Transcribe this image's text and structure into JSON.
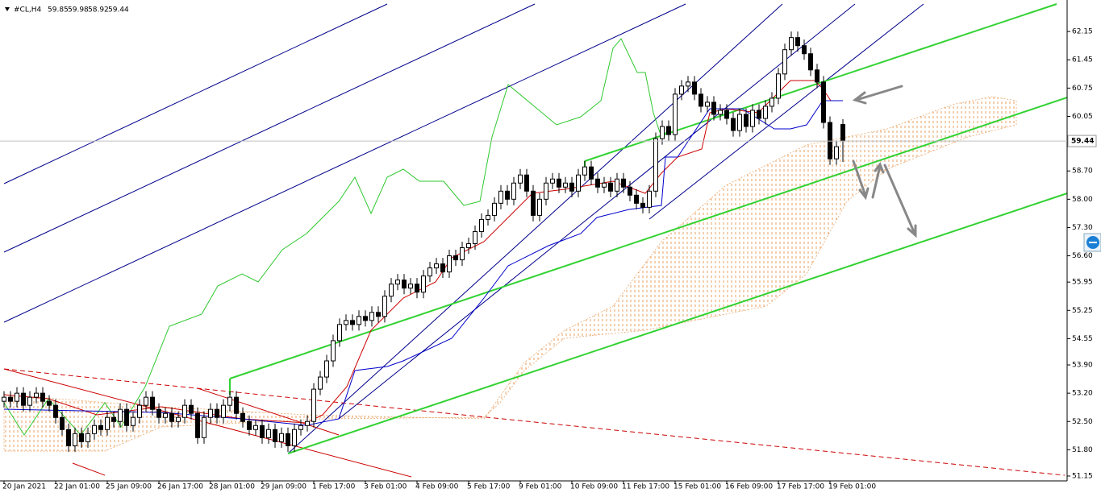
{
  "chart_data": {
    "type": "candlestick",
    "title": "#CL,H4",
    "categories": [
      "20 Jan 2021",
      null,
      null,
      null,
      null,
      null,
      null,
      null,
      "22 Jan 01:00",
      null,
      null,
      null,
      null,
      null,
      null,
      null,
      "25 Jan 09:00",
      null,
      null,
      null,
      null,
      null,
      null,
      null,
      "26 Jan 17:00",
      null,
      null,
      null,
      null,
      null,
      null,
      null,
      "28 Jan 01:00",
      null,
      null,
      null,
      null,
      null,
      null,
      null,
      "29 Jan 09:00",
      null,
      null,
      null,
      null,
      null,
      null,
      null,
      "1 Feb 17:00",
      null,
      null,
      null,
      null,
      null,
      null,
      null,
      "3 Feb 01:00",
      null,
      null,
      null,
      null,
      null,
      null,
      null,
      "4 Feb 09:00",
      null,
      null,
      null,
      null,
      null,
      null,
      null,
      "5 Feb 17:00",
      null,
      null,
      null,
      null,
      null,
      null,
      null,
      "9 Feb 01:00",
      null,
      null,
      null,
      null,
      null,
      null,
      null,
      "10 Feb 09:00",
      null,
      null,
      null,
      null,
      null,
      null,
      null,
      "11 Feb 17:00",
      null,
      null,
      null,
      null,
      null,
      null,
      null,
      "15 Feb 01:00",
      null,
      null,
      null,
      null,
      null,
      null,
      null,
      "16 Feb 09:00",
      null,
      null,
      null,
      null,
      null,
      null,
      null,
      "17 Feb 17:00",
      null,
      null,
      null,
      null,
      null,
      null,
      null,
      "19 Feb 01:00",
      null,
      null
    ],
    "open": [
      53.0,
      53.1,
      53.0,
      53.2,
      52.9,
      53.1,
      53.2,
      53.0,
      52.9,
      52.6,
      52.3,
      51.9,
      52.2,
      52.0,
      52.2,
      52.4,
      52.3,
      52.6,
      52.5,
      52.8,
      52.4,
      52.6,
      52.9,
      53.1,
      52.8,
      52.6,
      52.7,
      52.5,
      52.6,
      52.9,
      52.7,
      52.1,
      52.6,
      52.8,
      52.6,
      52.9,
      53.1,
      52.7,
      52.5,
      52.3,
      52.4,
      52.1,
      52.3,
      52.0,
      52.2,
      51.9,
      52.3,
      52.4,
      52.5,
      53.3,
      53.6,
      54.0,
      54.5,
      54.9,
      55.0,
      54.9,
      55.1,
      55.0,
      55.2,
      55.1,
      55.6,
      55.9,
      56.0,
      55.8,
      55.9,
      55.7,
      56.1,
      56.3,
      56.4,
      56.2,
      56.6,
      56.5,
      56.8,
      56.9,
      57.2,
      57.5,
      57.6,
      57.9,
      58.2,
      58.0,
      58.4,
      58.6,
      58.2,
      57.6,
      58.0,
      58.4,
      58.5,
      58.3,
      58.4,
      58.2,
      58.6,
      58.8,
      58.5,
      58.3,
      58.4,
      58.2,
      58.5,
      58.3,
      58.1,
      57.9,
      57.8,
      58.2,
      59.5,
      59.8,
      59.6,
      60.6,
      60.8,
      60.9,
      60.6,
      60.3,
      60.4,
      60.1,
      60.2,
      60.0,
      59.7,
      60.1,
      59.8,
      60.2,
      60.0,
      60.3,
      60.5,
      61.1,
      61.7,
      62.0,
      61.8,
      61.6,
      61.2,
      60.9,
      59.9,
      59.0,
      59.85
    ],
    "high": [
      53.25,
      53.25,
      53.35,
      53.35,
      53.25,
      53.35,
      53.35,
      53.15,
      53.05,
      52.75,
      52.45,
      52.35,
      52.35,
      52.35,
      52.55,
      52.55,
      52.75,
      52.75,
      52.95,
      52.95,
      52.75,
      53.05,
      53.25,
      53.25,
      52.95,
      52.85,
      52.85,
      52.75,
      53.05,
      53.05,
      52.85,
      52.75,
      52.95,
      52.95,
      53.05,
      53.25,
      53.25,
      52.85,
      52.65,
      52.55,
      52.55,
      52.45,
      52.45,
      52.35,
      52.35,
      52.45,
      52.55,
      52.65,
      53.45,
      53.75,
      54.15,
      54.65,
      55.05,
      55.15,
      55.15,
      55.25,
      55.25,
      55.35,
      55.35,
      55.75,
      56.05,
      56.15,
      56.15,
      56.05,
      56.05,
      56.25,
      56.45,
      56.55,
      56.55,
      56.75,
      56.75,
      56.95,
      57.05,
      57.35,
      57.65,
      57.75,
      58.05,
      58.35,
      58.35,
      58.55,
      58.75,
      58.75,
      58.35,
      58.15,
      58.55,
      58.65,
      58.65,
      58.55,
      58.55,
      58.75,
      58.95,
      58.95,
      58.65,
      58.55,
      58.55,
      58.65,
      58.65,
      58.45,
      58.25,
      58.05,
      58.35,
      59.65,
      59.95,
      59.95,
      60.75,
      60.95,
      61.05,
      61.05,
      60.75,
      60.55,
      60.55,
      60.35,
      60.35,
      60.15,
      60.25,
      60.25,
      60.35,
      60.35,
      60.45,
      60.65,
      61.25,
      61.85,
      62.15,
      62.15,
      61.95,
      61.75,
      61.35,
      61.05,
      60.05,
      59.45,
      59.98
    ],
    "low": [
      52.85,
      52.85,
      52.85,
      52.75,
      52.75,
      52.95,
      52.85,
      52.75,
      52.45,
      52.15,
      51.75,
      51.75,
      51.85,
      51.85,
      52.05,
      52.15,
      52.15,
      52.35,
      52.35,
      52.25,
      52.25,
      52.45,
      52.75,
      52.65,
      52.45,
      52.45,
      52.35,
      52.35,
      52.45,
      52.55,
      51.95,
      51.95,
      52.45,
      52.45,
      52.45,
      52.75,
      52.55,
      52.35,
      52.15,
      52.15,
      51.95,
      51.95,
      51.85,
      51.85,
      51.75,
      51.75,
      52.15,
      52.25,
      52.35,
      53.15,
      53.45,
      53.85,
      54.35,
      54.75,
      54.75,
      54.75,
      54.85,
      54.85,
      54.95,
      54.95,
      55.45,
      55.75,
      55.65,
      55.65,
      55.55,
      55.55,
      55.95,
      56.15,
      56.05,
      56.05,
      56.35,
      56.35,
      56.65,
      56.75,
      57.05,
      57.35,
      57.45,
      57.75,
      57.85,
      57.85,
      58.25,
      58.05,
      57.45,
      57.45,
      57.85,
      58.25,
      58.15,
      58.15,
      58.05,
      58.05,
      58.45,
      58.35,
      58.15,
      58.15,
      58.05,
      58.05,
      58.15,
      57.95,
      57.75,
      57.65,
      57.65,
      58.05,
      59.35,
      59.45,
      59.45,
      60.45,
      60.65,
      60.45,
      60.15,
      60.15,
      59.95,
      59.95,
      59.85,
      59.55,
      59.55,
      59.65,
      59.65,
      59.85,
      59.85,
      60.15,
      60.35,
      60.95,
      61.55,
      61.65,
      61.45,
      61.05,
      60.75,
      59.75,
      58.85,
      58.85,
      58.92
    ],
    "close": [
      53.1,
      53.0,
      53.2,
      52.9,
      53.1,
      53.2,
      53.0,
      52.9,
      52.6,
      52.3,
      51.9,
      52.2,
      52.0,
      52.2,
      52.4,
      52.3,
      52.6,
      52.5,
      52.8,
      52.4,
      52.6,
      52.9,
      53.1,
      52.8,
      52.6,
      52.7,
      52.5,
      52.6,
      52.9,
      52.7,
      52.1,
      52.6,
      52.8,
      52.6,
      52.9,
      53.1,
      52.7,
      52.5,
      52.3,
      52.4,
      52.1,
      52.3,
      52.0,
      52.2,
      51.9,
      52.3,
      52.4,
      52.5,
      53.3,
      53.6,
      54.0,
      54.5,
      54.9,
      55.0,
      54.9,
      55.1,
      55.0,
      55.2,
      55.1,
      55.6,
      55.9,
      56.0,
      55.8,
      55.9,
      55.7,
      56.1,
      56.3,
      56.4,
      56.2,
      56.6,
      56.5,
      56.8,
      56.9,
      57.2,
      57.5,
      57.6,
      57.9,
      58.2,
      58.0,
      58.4,
      58.6,
      58.2,
      57.6,
      58.0,
      58.4,
      58.5,
      58.3,
      58.4,
      58.2,
      58.6,
      58.8,
      58.5,
      58.3,
      58.4,
      58.2,
      58.5,
      58.3,
      58.1,
      57.9,
      57.8,
      58.2,
      59.5,
      59.8,
      59.6,
      60.6,
      60.8,
      60.9,
      60.6,
      60.3,
      60.4,
      60.1,
      60.2,
      60.0,
      59.7,
      60.1,
      59.8,
      60.2,
      60.0,
      60.3,
      60.5,
      61.1,
      61.7,
      62.0,
      61.8,
      61.6,
      61.2,
      60.9,
      59.9,
      59.0,
      59.3,
      59.44
    ],
    "ylim": [
      51.03,
      62.93
    ],
    "yticks": [
      62.15,
      61.45,
      60.75,
      60.05,
      {
        "value": 58.7,
        "label": "58.70"
      },
      {
        "value": 58,
        "label": "58.00"
      },
      {
        "value": 57.3,
        "label": "57.30"
      },
      {
        "value": 56.6,
        "label": "56.60"
      },
      55.95,
      55.25,
      54.55,
      {
        "value": 53.9,
        "label": "53.90"
      },
      {
        "value": 53.2,
        "label": "53.20"
      },
      {
        "value": 52.5,
        "label": "52.50"
      },
      {
        "value": 51.8,
        "label": "51.80"
      },
      51.15
    ],
    "up_color": "#ffffff",
    "down_color": "#000000"
  }
}
